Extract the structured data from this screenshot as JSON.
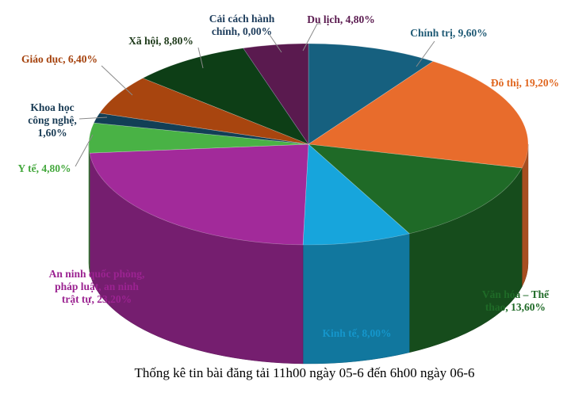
{
  "chart_data": {
    "type": "pie",
    "title": "Thống kê tin bài đăng tải 11h00 ngày 05-6 đến 6h00 ngày 06-6",
    "slices": [
      {
        "label": "Chính trị, 9,60%",
        "name": "Chính trị",
        "value": 9.6,
        "color": "#16607f",
        "label_color": "#1f5a75"
      },
      {
        "label": "Đô thị, 19,20%",
        "name": "Đô thị",
        "value": 19.2,
        "color": "#e86c2c",
        "label_color": "#e0661f"
      },
      {
        "label": "Văn hóa – Thể thao, 13,60%",
        "name": "Văn hóa – Thể thao",
        "value": 13.6,
        "color": "#1f6a27",
        "label_color": "#1f6a27"
      },
      {
        "label": "Kinh tế, 8,00%",
        "name": "Kinh tế",
        "value": 8.0,
        "color": "#17a5dc",
        "label_color": "#1596cb"
      },
      {
        "label": "An ninh quốc phòng, pháp luật, an ninh trật tự, 23,20%",
        "name": "An ninh quốc phòng, pháp luật, an ninh trật tự",
        "value": 23.2,
        "color": "#a22a9a",
        "label_color": "#9b2391"
      },
      {
        "label": "Y tế, 4,80%",
        "name": "Y tế",
        "value": 4.8,
        "color": "#49b245",
        "label_color": "#44a83d"
      },
      {
        "label": "Khoa học công nghệ, 1,60%",
        "name": "Khoa học công nghệ",
        "value": 1.6,
        "color": "#123f56",
        "label_color": "#1a3c55"
      },
      {
        "label": "Giáo dục, 6,40%",
        "name": "Giáo dục",
        "value": 6.4,
        "color": "#a8450f",
        "label_color": "#a5420d"
      },
      {
        "label": "Xã hội, 8,80%",
        "name": "Xã hội",
        "value": 8.8,
        "color": "#0d3e16",
        "label_color": "#1e3a1a"
      },
      {
        "label": "Cải cách hành chính, 0,00%",
        "name": "Cải cách hành chính",
        "value": 0.0,
        "color": "#2a5a8a",
        "label_color": "#1e3d5c"
      },
      {
        "label": "Du lịch, 4,80%",
        "name": "Du lịch",
        "value": 4.8,
        "color": "#5a1a4f",
        "label_color": "#5a1a4f"
      }
    ]
  }
}
